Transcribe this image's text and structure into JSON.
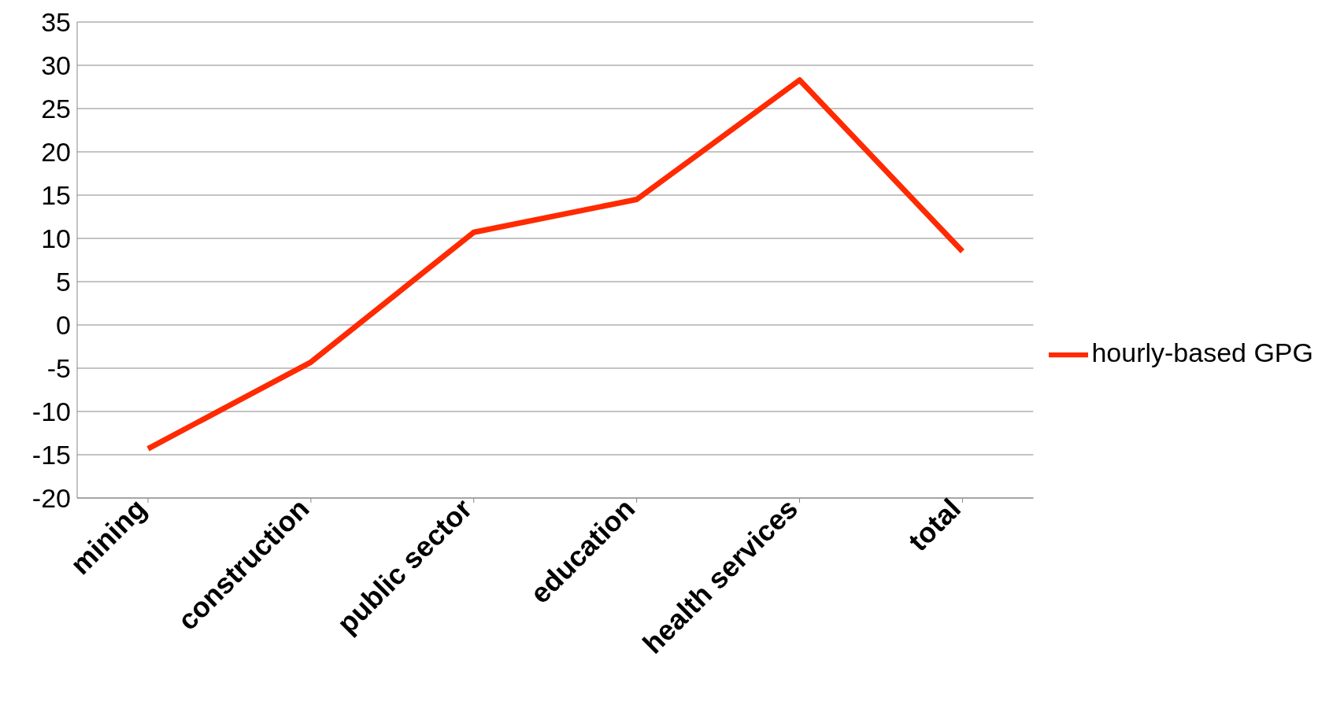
{
  "chart_data": {
    "type": "line",
    "categories": [
      "mining",
      "construction",
      "public sector",
      "education",
      "health services",
      "total"
    ],
    "series": [
      {
        "name": "hourly-based GPG",
        "color": "#ff2a00",
        "values": [
          -14.3,
          -4.3,
          10.7,
          14.5,
          28.3,
          8.5
        ]
      }
    ],
    "ylim": [
      -20,
      35
    ],
    "yticks": [
      -20,
      -15,
      -10,
      -5,
      0,
      5,
      10,
      15,
      20,
      25,
      30,
      35
    ],
    "grid": "y",
    "legend": "right",
    "marker": "none",
    "line_style": "solid"
  }
}
